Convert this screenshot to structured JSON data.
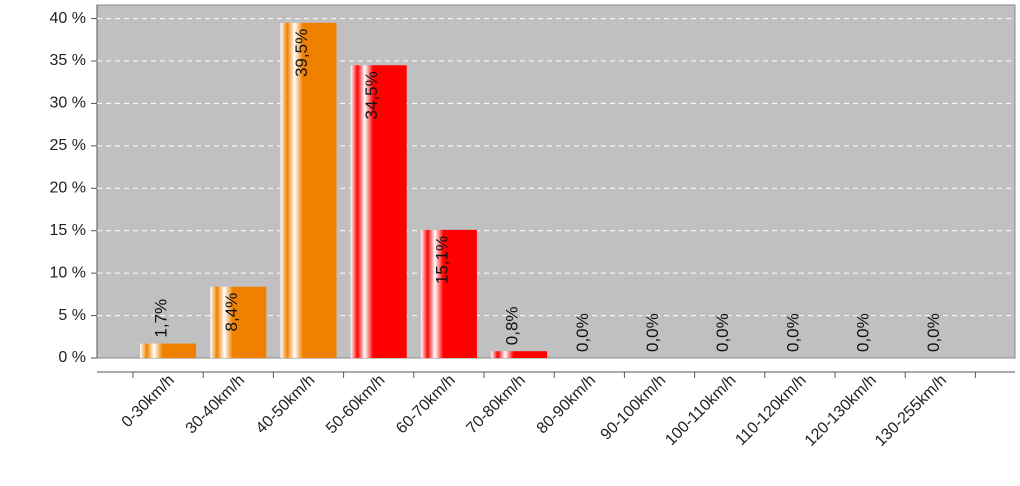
{
  "chart_data": {
    "type": "bar",
    "categories": [
      "0-30km/h",
      "30-40km/h",
      "40-50km/h",
      "50-60km/h",
      "60-70km/h",
      "70-80km/h",
      "80-90km/h",
      "90-100km/h",
      "100-110km/h",
      "110-120km/h",
      "120-130km/h",
      "130-255km/h"
    ],
    "values": [
      1.7,
      8.4,
      39.5,
      34.5,
      15.1,
      0.8,
      0,
      0,
      0,
      0,
      0,
      0
    ],
    "value_labels": [
      "1,7%",
      "8,4%",
      "39,5%",
      "34,5%",
      "15,1%",
      "0,8%",
      "0,0%",
      "0,0%",
      "0,0%",
      "0,0%",
      "0,0%",
      "0,0%"
    ],
    "colors": [
      "#f08000",
      "#f08000",
      "#f08000",
      "#ff0000",
      "#ff0000",
      "#ff0000",
      "#ff0000",
      "#ff0000",
      "#ff0000",
      "#ff0000",
      "#ff0000",
      "#ff0000"
    ],
    "ylim": [
      0,
      41.6
    ],
    "yticks": [
      {
        "value": 0,
        "label": "0 %"
      },
      {
        "value": 5,
        "label": "5 %"
      },
      {
        "value": 10,
        "label": "10 %"
      },
      {
        "value": 15,
        "label": "15 %"
      },
      {
        "value": 20,
        "label": "20 %"
      },
      {
        "value": 25,
        "label": "25 %"
      },
      {
        "value": 30,
        "label": "30 %"
      },
      {
        "value": 35,
        "label": "35 %"
      },
      {
        "value": 40,
        "label": "40 %"
      }
    ],
    "grid": true
  }
}
